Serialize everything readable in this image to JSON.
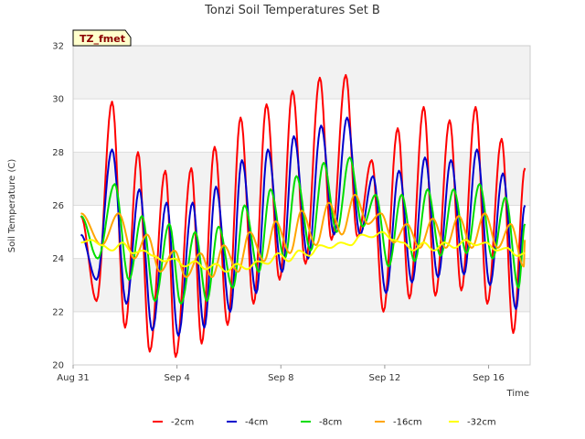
{
  "chart_data": {
    "type": "line",
    "title": "Tonzi Soil Temperatures Set B",
    "xlabel": "Time",
    "ylabel": "Soil Temperature (C)",
    "badge": "TZ_fmet",
    "xlim": [
      0,
      17.6
    ],
    "ylim": [
      20,
      32
    ],
    "x_ticks": [
      {
        "x": 0,
        "label": "Aug 31"
      },
      {
        "x": 4,
        "label": "Sep 4"
      },
      {
        "x": 8,
        "label": "Sep 8"
      },
      {
        "x": 12,
        "label": "Sep 12"
      },
      {
        "x": 16,
        "label": "Sep 16"
      }
    ],
    "y_ticks": [
      20,
      22,
      24,
      26,
      28,
      30,
      32
    ],
    "grid": true,
    "legend_position": "bottom",
    "series": [
      {
        "name": "-2cm",
        "color": "#ff0000",
        "x": [
          0.3,
          0.9,
          1.5,
          2.0,
          2.5,
          2.95,
          3.55,
          3.95,
          4.55,
          4.95,
          5.45,
          5.95,
          6.45,
          6.95,
          7.45,
          7.95,
          8.45,
          8.95,
          9.5,
          9.95,
          10.5,
          10.95,
          11.5,
          11.95,
          12.5,
          12.95,
          13.5,
          13.95,
          14.5,
          14.95,
          15.5,
          15.95,
          16.5,
          16.95,
          17.4
        ],
        "y": [
          25.6,
          22.4,
          29.9,
          21.4,
          28.0,
          20.5,
          27.3,
          20.3,
          27.4,
          20.8,
          28.2,
          21.5,
          29.3,
          22.3,
          29.8,
          23.2,
          30.3,
          23.8,
          30.8,
          24.7,
          30.9,
          24.8,
          27.7,
          22.0,
          28.9,
          22.5,
          29.7,
          22.6,
          29.2,
          22.8,
          29.7,
          22.3,
          28.5,
          21.2,
          27.4
        ]
      },
      {
        "name": "-4cm",
        "color": "#0000cc",
        "x": [
          0.3,
          0.9,
          1.5,
          2.05,
          2.55,
          3.05,
          3.6,
          4.05,
          4.6,
          5.05,
          5.5,
          6.05,
          6.5,
          7.05,
          7.5,
          8.05,
          8.5,
          9.05,
          9.55,
          10.05,
          10.55,
          11.05,
          11.55,
          12.05,
          12.55,
          13.05,
          13.55,
          14.05,
          14.55,
          15.05,
          15.55,
          16.05,
          16.55,
          17.05,
          17.4
        ],
        "y": [
          24.9,
          23.2,
          28.1,
          22.3,
          26.6,
          21.3,
          26.1,
          21.1,
          26.1,
          21.4,
          26.7,
          22.0,
          27.7,
          22.7,
          28.1,
          23.5,
          28.6,
          24.0,
          29.0,
          24.9,
          29.3,
          24.9,
          27.1,
          22.7,
          27.3,
          23.1,
          27.8,
          23.3,
          27.7,
          23.4,
          28.1,
          23.0,
          27.2,
          22.1,
          26.0
        ]
      },
      {
        "name": "-8cm",
        "color": "#00dd00",
        "x": [
          0.3,
          0.95,
          1.6,
          2.15,
          2.65,
          3.15,
          3.7,
          4.15,
          4.7,
          5.15,
          5.6,
          6.15,
          6.6,
          7.15,
          7.6,
          8.15,
          8.6,
          9.15,
          9.65,
          10.15,
          10.65,
          11.15,
          11.65,
          12.15,
          12.65,
          13.15,
          13.65,
          14.15,
          14.65,
          15.15,
          15.65,
          16.15,
          16.65,
          17.15,
          17.4
        ],
        "y": [
          25.6,
          24.0,
          26.8,
          23.2,
          25.6,
          22.4,
          25.3,
          22.3,
          25.0,
          22.4,
          25.2,
          22.9,
          26.0,
          23.5,
          26.6,
          24.0,
          27.1,
          24.3,
          27.6,
          25.0,
          27.8,
          25.2,
          26.4,
          23.7,
          26.4,
          23.9,
          26.6,
          24.1,
          26.6,
          24.2,
          26.8,
          24.0,
          26.3,
          22.9,
          25.3
        ]
      },
      {
        "name": "-16cm",
        "color": "#ffa500",
        "x": [
          0.3,
          1.1,
          1.75,
          2.35,
          2.85,
          3.35,
          3.9,
          4.35,
          4.9,
          5.35,
          5.8,
          6.35,
          6.8,
          7.35,
          7.8,
          8.35,
          8.8,
          9.35,
          9.85,
          10.35,
          10.85,
          11.35,
          11.85,
          12.35,
          12.85,
          13.35,
          13.85,
          14.35,
          14.85,
          15.35,
          15.85,
          16.35,
          16.85,
          17.35,
          17.4
        ],
        "y": [
          25.7,
          24.5,
          25.7,
          24.0,
          24.9,
          23.5,
          24.3,
          23.3,
          24.2,
          23.3,
          24.5,
          23.5,
          25.0,
          23.9,
          25.4,
          24.2,
          25.8,
          24.5,
          26.1,
          24.9,
          26.4,
          25.3,
          25.7,
          24.6,
          25.3,
          24.4,
          25.5,
          24.4,
          25.6,
          24.4,
          25.7,
          24.4,
          25.3,
          23.7,
          24.7
        ]
      },
      {
        "name": "-32cm",
        "color": "#ffff00",
        "x": [
          0.3,
          0.7,
          1.1,
          1.5,
          1.9,
          2.3,
          2.7,
          3.1,
          3.5,
          3.9,
          4.3,
          4.7,
          5.1,
          5.5,
          5.9,
          6.3,
          6.7,
          7.1,
          7.5,
          7.9,
          8.3,
          8.7,
          9.1,
          9.5,
          9.9,
          10.3,
          10.7,
          11.1,
          11.5,
          11.9,
          12.3,
          12.7,
          13.1,
          13.5,
          13.9,
          14.3,
          14.7,
          15.1,
          15.5,
          15.9,
          16.3,
          16.7,
          17.1,
          17.4
        ],
        "y": [
          24.6,
          24.7,
          24.5,
          24.3,
          24.6,
          24.2,
          24.3,
          24.1,
          23.9,
          24.0,
          23.7,
          23.9,
          23.6,
          23.8,
          23.5,
          23.8,
          23.6,
          23.9,
          23.8,
          24.2,
          23.9,
          24.3,
          24.1,
          24.5,
          24.4,
          24.6,
          24.5,
          24.9,
          24.8,
          25.0,
          24.7,
          24.6,
          24.3,
          24.6,
          24.3,
          24.6,
          24.4,
          24.7,
          24.5,
          24.6,
          24.3,
          24.4,
          24.1,
          24.2
        ]
      }
    ]
  }
}
